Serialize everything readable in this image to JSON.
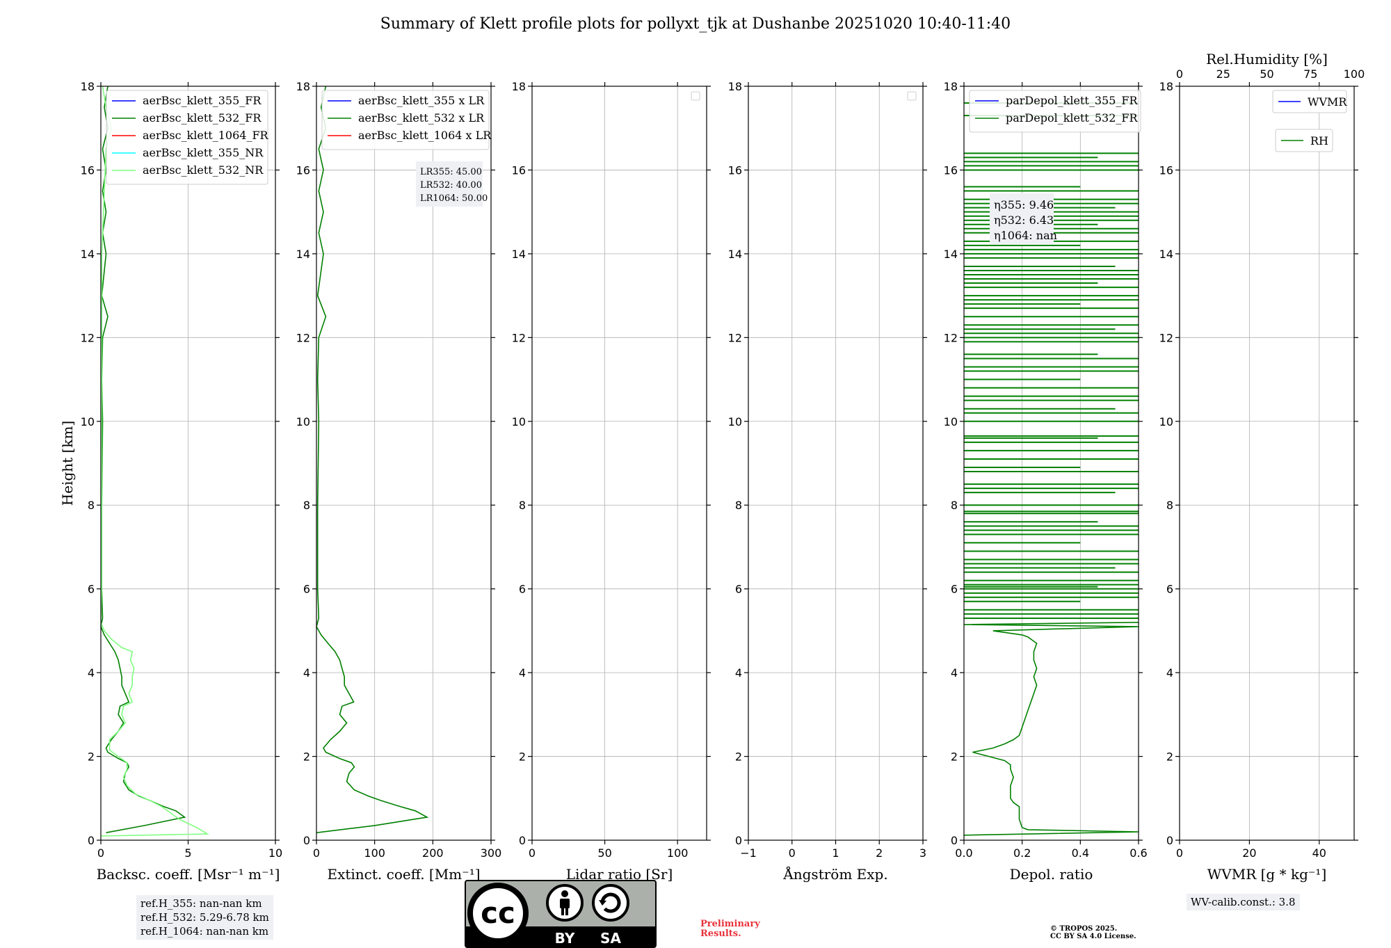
{
  "title": "Summary of Klett profile plots for pollyxt_tjk at Dushanbe 20251020 10:40-11:40",
  "y_axis_label": "Height [km]",
  "chart_data": [
    {
      "type": "line",
      "id": "backscatter",
      "xlabel": "Backsc. coeff. [Msr⁻¹ m⁻¹]",
      "xlim": [
        0,
        10
      ],
      "xticks": [
        "0",
        "5",
        "10"
      ],
      "ylim": [
        0,
        18
      ],
      "yticks": [
        "0",
        "2",
        "4",
        "6",
        "8",
        "10",
        "12",
        "14",
        "16",
        "18"
      ],
      "grid": true,
      "legend_position": "top-left",
      "series": [
        {
          "name": "aerBsc_klett_355_FR",
          "color": "#0000ff",
          "points": []
        },
        {
          "name": "aerBsc_klett_532_FR",
          "color": "#008000",
          "points": [
            [
              0.3,
              0.18
            ],
            [
              2.5,
              0.35
            ],
            [
              4.8,
              0.55
            ],
            [
              4.3,
              0.7
            ],
            [
              3.5,
              0.82
            ],
            [
              2.8,
              0.95
            ],
            [
              2.2,
              1.05
            ],
            [
              1.6,
              1.2
            ],
            [
              1.3,
              1.4
            ],
            [
              1.4,
              1.6
            ],
            [
              1.6,
              1.75
            ],
            [
              1.5,
              1.85
            ],
            [
              1.0,
              1.95
            ],
            [
              0.4,
              2.1
            ],
            [
              0.3,
              2.2
            ],
            [
              0.6,
              2.4
            ],
            [
              1.0,
              2.6
            ],
            [
              1.3,
              2.8
            ],
            [
              1.0,
              3.0
            ],
            [
              1.1,
              3.2
            ],
            [
              1.6,
              3.3
            ],
            [
              1.4,
              3.5
            ],
            [
              1.2,
              3.7
            ],
            [
              1.2,
              3.9
            ],
            [
              1.1,
              4.1
            ],
            [
              1.0,
              4.3
            ],
            [
              0.8,
              4.5
            ],
            [
              0.5,
              4.7
            ],
            [
              0.2,
              4.9
            ],
            [
              0.0,
              5.1
            ],
            [
              0.1,
              5.3
            ],
            [
              0.05,
              6.0
            ],
            [
              0.05,
              8.0
            ],
            [
              0.1,
              10.0
            ],
            [
              0.05,
              11.0
            ],
            [
              0.1,
              12.0
            ],
            [
              0.4,
              12.5
            ],
            [
              0.05,
              13.0
            ],
            [
              0.3,
              14.0
            ],
            [
              0.1,
              14.5
            ],
            [
              0.3,
              15.0
            ],
            [
              0.1,
              15.5
            ],
            [
              0.3,
              16.0
            ],
            [
              0.1,
              16.5
            ],
            [
              0.4,
              17.0
            ],
            [
              0.2,
              17.5
            ],
            [
              0.4,
              18.0
            ]
          ]
        },
        {
          "name": "aerBsc_klett_1064_FR",
          "color": "#ff0000",
          "points": []
        },
        {
          "name": "aerBsc_klett_355_NR",
          "color": "#00ffff",
          "points": []
        },
        {
          "name": "aerBsc_klett_532_NR",
          "color": "#7fff7f",
          "points": [
            [
              0.0,
              0.1
            ],
            [
              6.1,
              0.15
            ],
            [
              5.5,
              0.3
            ],
            [
              4.5,
              0.5
            ],
            [
              4.0,
              0.65
            ],
            [
              3.5,
              0.8
            ],
            [
              2.8,
              0.95
            ],
            [
              2.0,
              1.1
            ],
            [
              1.5,
              1.3
            ],
            [
              1.3,
              1.5
            ],
            [
              1.5,
              1.7
            ],
            [
              1.5,
              1.85
            ],
            [
              1.0,
              2.0
            ],
            [
              0.5,
              2.15
            ],
            [
              0.5,
              2.4
            ],
            [
              1.0,
              2.6
            ],
            [
              1.4,
              2.8
            ],
            [
              1.2,
              3.0
            ],
            [
              1.3,
              3.2
            ],
            [
              1.8,
              3.3
            ],
            [
              1.6,
              3.5
            ],
            [
              1.8,
              3.7
            ],
            [
              1.8,
              3.9
            ],
            [
              1.9,
              4.1
            ],
            [
              1.7,
              4.3
            ],
            [
              1.8,
              4.5
            ],
            [
              1.2,
              4.6
            ],
            [
              0.6,
              4.8
            ],
            [
              0.2,
              5.0
            ],
            [
              0.0,
              5.2
            ],
            [
              0.05,
              6.0
            ],
            [
              0.05,
              10.0
            ],
            [
              0.05,
              12.0
            ],
            [
              0.05,
              14.0
            ],
            [
              0.3,
              16.5
            ],
            [
              0.6,
              17.0
            ],
            [
              0.3,
              17.5
            ],
            [
              0.1,
              18.0
            ]
          ]
        }
      ]
    },
    {
      "type": "line",
      "id": "extinction",
      "xlabel": "Extinct. coeff. [Mm⁻¹]",
      "xlim": [
        0,
        300
      ],
      "xticks": [
        "0",
        "100",
        "200",
        "300"
      ],
      "ylim": [
        0,
        18
      ],
      "yticks": [
        "0",
        "2",
        "4",
        "6",
        "8",
        "10",
        "12",
        "14",
        "16",
        "18"
      ],
      "grid": true,
      "legend_position": "top-right",
      "series": [
        {
          "name": "aerBsc_klett_355 x LR",
          "color": "#0000ff",
          "points": []
        },
        {
          "name": "aerBsc_klett_532 x LR",
          "color": "#008000",
          "points": [
            [
              0,
              0.18
            ],
            [
              100,
              0.35
            ],
            [
              190,
              0.55
            ],
            [
              170,
              0.7
            ],
            [
              140,
              0.82
            ],
            [
              110,
              0.95
            ],
            [
              90,
              1.05
            ],
            [
              65,
              1.2
            ],
            [
              52,
              1.4
            ],
            [
              56,
              1.6
            ],
            [
              65,
              1.75
            ],
            [
              60,
              1.85
            ],
            [
              40,
              1.95
            ],
            [
              16,
              2.1
            ],
            [
              12,
              2.2
            ],
            [
              24,
              2.4
            ],
            [
              40,
              2.6
            ],
            [
              52,
              2.8
            ],
            [
              40,
              3.0
            ],
            [
              44,
              3.2
            ],
            [
              64,
              3.3
            ],
            [
              56,
              3.5
            ],
            [
              48,
              3.7
            ],
            [
              48,
              3.9
            ],
            [
              44,
              4.1
            ],
            [
              40,
              4.3
            ],
            [
              32,
              4.5
            ],
            [
              20,
              4.7
            ],
            [
              8,
              4.9
            ],
            [
              0,
              5.1
            ],
            [
              4,
              5.3
            ],
            [
              2,
              6.0
            ],
            [
              2,
              8.0
            ],
            [
              4,
              10.0
            ],
            [
              2,
              11.0
            ],
            [
              4,
              12.0
            ],
            [
              16,
              12.5
            ],
            [
              2,
              13.0
            ],
            [
              12,
              14.0
            ],
            [
              4,
              14.5
            ],
            [
              12,
              15.0
            ],
            [
              4,
              15.5
            ],
            [
              12,
              16.0
            ],
            [
              4,
              16.5
            ],
            [
              16,
              17.0
            ],
            [
              8,
              17.5
            ],
            [
              16,
              18.0
            ]
          ]
        },
        {
          "name": "aerBsc_klett_1064 x LR",
          "color": "#ff0000",
          "points": []
        }
      ],
      "annotation": [
        "LR355: 45.00",
        "LR532: 40.00",
        "LR1064: 50.00"
      ]
    },
    {
      "type": "line",
      "id": "lidar-ratio",
      "xlabel": "Lidar ratio [Sr]",
      "xlim": [
        0,
        120
      ],
      "xticks": [
        "0",
        "50",
        "100"
      ],
      "ylim": [
        0,
        18
      ],
      "yticks": [
        "0",
        "2",
        "4",
        "6",
        "8",
        "10",
        "12",
        "14",
        "16",
        "18"
      ],
      "grid": true,
      "legend_position": "top-right",
      "series": []
    },
    {
      "type": "line",
      "id": "angstrom",
      "xlabel": "Ångström Exp.",
      "xlim": [
        -1,
        3
      ],
      "xticks": [
        "−1",
        "0",
        "1",
        "2",
        "3"
      ],
      "ylim": [
        0,
        18
      ],
      "yticks": [
        "0",
        "2",
        "4",
        "6",
        "8",
        "10",
        "12",
        "14",
        "16",
        "18"
      ],
      "grid": true,
      "legend_position": "top-right",
      "series": []
    },
    {
      "type": "line",
      "id": "depol",
      "xlabel": "Depol. ratio",
      "xlim": [
        0,
        0.6
      ],
      "xticks": [
        "0.0",
        "0.2",
        "0.4",
        "0.6"
      ],
      "ylim": [
        0,
        18
      ],
      "yticks": [
        "0",
        "2",
        "4",
        "6",
        "8",
        "10",
        "12",
        "14",
        "16",
        "18"
      ],
      "grid": true,
      "legend_position": "top-left",
      "series": [
        {
          "name": "parDepol_klett_355_FR",
          "color": "#0000ff",
          "points": []
        },
        {
          "name": "parDepol_klett_532_FR",
          "color": "#008000",
          "points": [
            [
              0.0,
              0.12
            ],
            [
              0.6,
              0.2
            ],
            [
              0.22,
              0.25
            ],
            [
              0.2,
              0.3
            ],
            [
              0.19,
              0.5
            ],
            [
              0.19,
              0.8
            ],
            [
              0.17,
              0.9
            ],
            [
              0.16,
              1.0
            ],
            [
              0.16,
              1.3
            ],
            [
              0.17,
              1.5
            ],
            [
              0.16,
              1.7
            ],
            [
              0.16,
              1.8
            ],
            [
              0.14,
              1.9
            ],
            [
              0.03,
              2.1
            ],
            [
              0.1,
              2.2
            ],
            [
              0.14,
              2.3
            ],
            [
              0.17,
              2.4
            ],
            [
              0.19,
              2.5
            ],
            [
              0.2,
              2.7
            ],
            [
              0.21,
              2.9
            ],
            [
              0.22,
              3.1
            ],
            [
              0.23,
              3.3
            ],
            [
              0.24,
              3.5
            ],
            [
              0.25,
              3.7
            ],
            [
              0.24,
              3.9
            ],
            [
              0.25,
              4.1
            ],
            [
              0.24,
              4.3
            ],
            [
              0.24,
              4.5
            ],
            [
              0.25,
              4.7
            ],
            [
              0.22,
              4.85
            ],
            [
              0.2,
              4.9
            ],
            [
              0.1,
              5.0
            ],
            [
              0.6,
              5.1
            ],
            [
              0.0,
              5.15
            ],
            [
              0.6,
              5.2
            ]
          ]
        }
      ],
      "streaks_above_5km": [
        5.3,
        5.4,
        5.5,
        5.7,
        5.8,
        5.9,
        6.0,
        6.05,
        6.1,
        6.2,
        6.4,
        6.5,
        6.6,
        6.7,
        6.9,
        7.1,
        7.3,
        7.4,
        7.5,
        7.6,
        7.8,
        7.85,
        8.0,
        8.3,
        8.4,
        8.5,
        8.8,
        8.9,
        9.1,
        9.3,
        9.5,
        9.6,
        9.65,
        10.0,
        10.2,
        10.3,
        10.5,
        10.6,
        10.8,
        11.0,
        11.2,
        11.3,
        11.5,
        11.6,
        11.9,
        12.0,
        12.1,
        12.2,
        12.3,
        12.5,
        12.7,
        12.8,
        12.9,
        13.0,
        13.2,
        13.3,
        13.4,
        13.5,
        13.6,
        13.7,
        13.9,
        14.0,
        14.1,
        14.2,
        14.3,
        14.5,
        14.6,
        14.7,
        14.8,
        14.9,
        15.0,
        15.1,
        15.2,
        15.3,
        15.5,
        15.6,
        16.0,
        16.1,
        16.2,
        16.3,
        16.4,
        17.3,
        17.6
      ],
      "annotation": [
        "η355: 9.46",
        "η532: 6.43",
        "η1064: nan"
      ]
    },
    {
      "type": "line",
      "id": "wvmr",
      "xlabel": "WVMR [g * kg⁻¹]",
      "xlim": [
        0,
        50
      ],
      "xticks": [
        "0",
        "20",
        "40"
      ],
      "top_xlabel": "Rel.Humidity [%]",
      "top_xlim": [
        0,
        100
      ],
      "top_xticks": [
        "0",
        "25",
        "50",
        "75",
        "100"
      ],
      "ylim": [
        0,
        18
      ],
      "yticks": [
        "0",
        "2",
        "4",
        "6",
        "8",
        "10",
        "12",
        "14",
        "16",
        "18"
      ],
      "grid": true,
      "legend_position": "top-right",
      "series": [
        {
          "name": "WVMR",
          "color": "#0000ff",
          "points": []
        },
        {
          "name": "RH",
          "color": "#008000",
          "points": []
        }
      ]
    }
  ],
  "ref_heights": [
    "ref.H_355: nan-nan km",
    "ref.H_532: 5.29-6.78 km",
    "ref.H_1064: nan-nan km"
  ],
  "wv_calib": "WV-calib.const.: 3.8",
  "preliminary": [
    "Preliminary",
    "Results."
  ],
  "copyright": [
    "© TROPOS 2025.",
    "CC BY SA 4.0 License."
  ],
  "cc_badge": {
    "text_cc": "cc",
    "text_by": "BY",
    "text_sa": "SA"
  }
}
